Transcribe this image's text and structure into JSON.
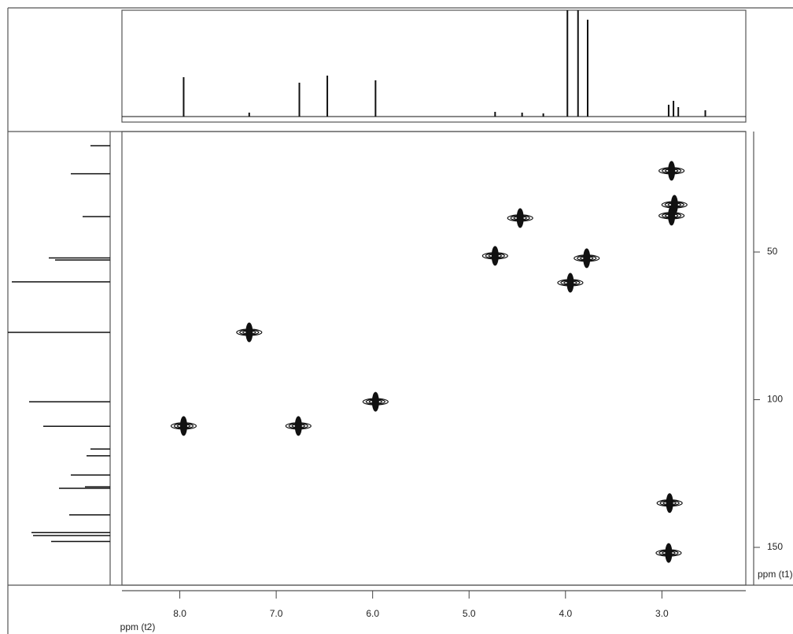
{
  "chart_data": {
    "type": "contour",
    "x_label": "ppm (t2)",
    "y_label": "ppm (t1)",
    "xlim": [
      8.6,
      2.13
    ],
    "ylim": [
      9.2,
      162.8
    ],
    "xticks": [
      {
        "value": 8,
        "label": "8.0"
      },
      {
        "value": 7,
        "label": "7.0"
      },
      {
        "value": 6,
        "label": "6.0"
      },
      {
        "value": 5,
        "label": "5.0"
      },
      {
        "value": 4,
        "label": "4.0"
      },
      {
        "value": 3,
        "label": "3.0"
      }
    ],
    "yticks": [
      50,
      100,
      150
    ],
    "color": "#111111",
    "peaks": {
      "x": [
        7.96,
        6.77,
        5.97,
        7.28,
        4.73,
        4.47,
        3.95,
        3.78,
        2.9,
        2.87,
        2.9,
        2.92,
        2.93
      ],
      "y": [
        108.9,
        108.9,
        100.7,
        77.2,
        51.3,
        38.5,
        60.4,
        52.1,
        22.5,
        34,
        37.7,
        135,
        151.9
      ]
    },
    "f2_projection": {
      "x": [
        7.96,
        7.28,
        6.76,
        6.47,
        5.97,
        4.73,
        4.45,
        4.23,
        3.98,
        3.87,
        3.77,
        2.93,
        2.88,
        2.83,
        2.55
      ],
      "values": [
        50,
        5,
        43,
        52,
        46,
        6,
        5,
        4,
        135,
        135,
        123,
        15,
        20,
        12,
        8
      ],
      "ylim": [
        0,
        135
      ]
    },
    "f1_projection": {
      "y": [
        14,
        23.5,
        38,
        52,
        52.7,
        60.1,
        77.2,
        100.7,
        109,
        116.7,
        119,
        125.5,
        129.5,
        130,
        139,
        145,
        146,
        148
      ],
      "values": [
        25,
        50,
        35,
        78,
        70,
        125,
        130,
        103,
        85,
        25,
        30,
        50,
        32,
        65,
        52,
        100,
        98,
        75
      ],
      "xlim": [
        0,
        130
      ]
    }
  }
}
